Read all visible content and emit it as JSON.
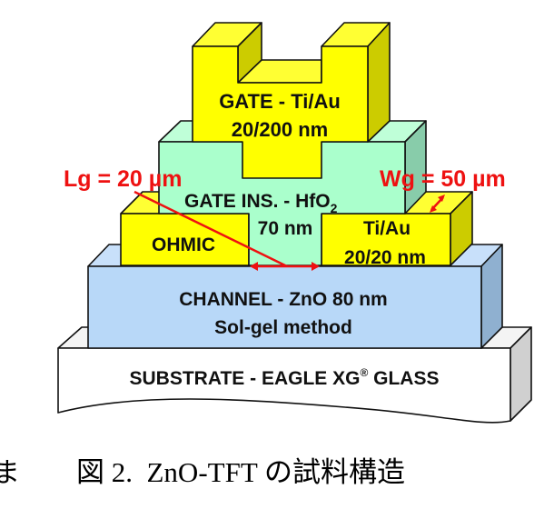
{
  "diagram": {
    "gate": {
      "line1": "GATE - Ti/Au",
      "line2": "20/200 nm"
    },
    "gate_insulator": {
      "line1": "GATE INS. - HfO",
      "subscript": "2",
      "line2": "70 nm"
    },
    "ohmic_left": {
      "label": "OHMIC"
    },
    "ohmic_right": {
      "line1": "Ti/Au",
      "line2": "20/20 nm"
    },
    "channel": {
      "line1": "CHANNEL - ZnO 80 nm",
      "line2": "Sol-gel method"
    },
    "substrate": {
      "label": "SUBSTRATE - EAGLE XG",
      "mark": "®",
      "label_end": " GLASS"
    },
    "gate_length": "Lg = 20 µm",
    "gate_width": "Wg = 50 µm",
    "colors": {
      "metal": "#ffff00",
      "metal_side": "#cccc00",
      "insulator": "#aaffcc",
      "insulator_side": "#88ccaa",
      "channel": "#b8d8f8",
      "channel_side": "#8fb0d0",
      "substrate": "#ffffff",
      "annotation": "#ee1111"
    }
  },
  "caption": {
    "left_fragment": "ま",
    "text": "図 2.  ZnO-TFT の試料構造"
  }
}
